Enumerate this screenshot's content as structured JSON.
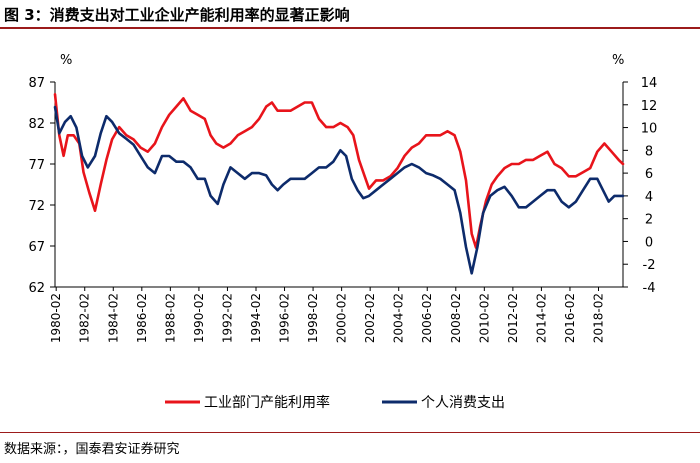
{
  "title": "图 3：消费支出对工业企业产能利用率的显著正影响",
  "source": "数据来源：，国泰君安证券研究",
  "colors": {
    "series1": "#e8141b",
    "series2": "#0d2b6b",
    "rule": "#9c1b1b"
  },
  "chart_data": {
    "type": "line",
    "left_unit": "%",
    "right_unit": "%",
    "left_ylim": [
      62,
      87
    ],
    "left_ticks": [
      "87",
      "82",
      "77",
      "72",
      "67",
      "62"
    ],
    "right_ylim": [
      -4,
      14
    ],
    "right_ticks": [
      "14",
      "12",
      "10",
      "8",
      "6",
      "4",
      "2",
      "0",
      "-2",
      "-4"
    ],
    "x_ticks": [
      "1980-02",
      "1982-02",
      "1984-02",
      "1986-02",
      "1988-02",
      "1990-02",
      "1992-02",
      "1994-02",
      "1996-02",
      "1998-02",
      "2000-02",
      "2002-02",
      "2004-02",
      "2006-02",
      "2008-02",
      "2010-02",
      "2012-02",
      "2014-02",
      "2016-02",
      "2018-02"
    ],
    "x_range": [
      1980.0,
      2019.8
    ],
    "series": [
      {
        "name": "工业部门产能利用率",
        "axis": "left",
        "points": [
          [
            1980.0,
            85.5
          ],
          [
            1980.3,
            80.5
          ],
          [
            1980.6,
            78.0
          ],
          [
            1980.9,
            80.5
          ],
          [
            1981.3,
            80.5
          ],
          [
            1981.7,
            79.5
          ],
          [
            1982.0,
            76.0
          ],
          [
            1982.4,
            73.5
          ],
          [
            1982.8,
            71.3
          ],
          [
            1983.2,
            74.5
          ],
          [
            1983.6,
            77.5
          ],
          [
            1984.0,
            80.0
          ],
          [
            1984.5,
            81.5
          ],
          [
            1985.0,
            80.5
          ],
          [
            1985.5,
            80.0
          ],
          [
            1986.0,
            79.0
          ],
          [
            1986.5,
            78.5
          ],
          [
            1987.0,
            79.5
          ],
          [
            1987.5,
            81.5
          ],
          [
            1988.0,
            83.0
          ],
          [
            1988.5,
            84.0
          ],
          [
            1989.0,
            85.0
          ],
          [
            1989.5,
            83.5
          ],
          [
            1990.0,
            83.0
          ],
          [
            1990.5,
            82.5
          ],
          [
            1990.9,
            80.5
          ],
          [
            1991.3,
            79.5
          ],
          [
            1991.8,
            79.0
          ],
          [
            1992.3,
            79.5
          ],
          [
            1992.8,
            80.5
          ],
          [
            1993.3,
            81.0
          ],
          [
            1993.8,
            81.5
          ],
          [
            1994.3,
            82.5
          ],
          [
            1994.8,
            84.0
          ],
          [
            1995.2,
            84.5
          ],
          [
            1995.6,
            83.5
          ],
          [
            1996.0,
            83.5
          ],
          [
            1996.5,
            83.5
          ],
          [
            1997.0,
            84.0
          ],
          [
            1997.5,
            84.5
          ],
          [
            1998.0,
            84.5
          ],
          [
            1998.5,
            82.5
          ],
          [
            1999.0,
            81.5
          ],
          [
            1999.5,
            81.5
          ],
          [
            2000.0,
            82.0
          ],
          [
            2000.5,
            81.5
          ],
          [
            2000.9,
            80.5
          ],
          [
            2001.3,
            77.5
          ],
          [
            2001.7,
            75.5
          ],
          [
            2002.0,
            74.0
          ],
          [
            2002.5,
            75.0
          ],
          [
            2003.0,
            75.0
          ],
          [
            2003.5,
            75.5
          ],
          [
            2004.0,
            76.5
          ],
          [
            2004.5,
            78.0
          ],
          [
            2005.0,
            79.0
          ],
          [
            2005.5,
            79.5
          ],
          [
            2006.0,
            80.5
          ],
          [
            2006.5,
            80.5
          ],
          [
            2007.0,
            80.5
          ],
          [
            2007.5,
            81.0
          ],
          [
            2008.0,
            80.5
          ],
          [
            2008.4,
            78.5
          ],
          [
            2008.8,
            75.0
          ],
          [
            2009.2,
            68.5
          ],
          [
            2009.5,
            66.8
          ],
          [
            2009.8,
            69.5
          ],
          [
            2010.2,
            72.5
          ],
          [
            2010.6,
            74.5
          ],
          [
            2011.0,
            75.5
          ],
          [
            2011.5,
            76.5
          ],
          [
            2012.0,
            77.0
          ],
          [
            2012.5,
            77.0
          ],
          [
            2013.0,
            77.5
          ],
          [
            2013.5,
            77.5
          ],
          [
            2014.0,
            78.0
          ],
          [
            2014.5,
            78.5
          ],
          [
            2015.0,
            77.0
          ],
          [
            2015.5,
            76.5
          ],
          [
            2016.0,
            75.5
          ],
          [
            2016.5,
            75.5
          ],
          [
            2017.0,
            76.0
          ],
          [
            2017.5,
            76.5
          ],
          [
            2018.0,
            78.5
          ],
          [
            2018.5,
            79.5
          ],
          [
            2019.0,
            78.5
          ],
          [
            2019.5,
            77.5
          ],
          [
            2019.8,
            77.0
          ]
        ]
      },
      {
        "name": "个人消费支出",
        "axis": "right",
        "points": [
          [
            1980.0,
            11.8
          ],
          [
            1980.3,
            9.5
          ],
          [
            1980.7,
            10.5
          ],
          [
            1981.1,
            11.0
          ],
          [
            1981.5,
            10.0
          ],
          [
            1981.9,
            7.5
          ],
          [
            1982.3,
            6.5
          ],
          [
            1982.8,
            7.5
          ],
          [
            1983.2,
            9.5
          ],
          [
            1983.6,
            11.0
          ],
          [
            1984.0,
            10.5
          ],
          [
            1984.5,
            9.5
          ],
          [
            1985.0,
            9.0
          ],
          [
            1985.5,
            8.5
          ],
          [
            1986.0,
            7.5
          ],
          [
            1986.5,
            6.5
          ],
          [
            1987.0,
            6.0
          ],
          [
            1987.5,
            7.5
          ],
          [
            1988.0,
            7.5
          ],
          [
            1988.5,
            7.0
          ],
          [
            1989.0,
            7.0
          ],
          [
            1989.5,
            6.5
          ],
          [
            1990.0,
            5.5
          ],
          [
            1990.5,
            5.5
          ],
          [
            1990.9,
            4.0
          ],
          [
            1991.4,
            3.3
          ],
          [
            1991.8,
            5.0
          ],
          [
            1992.3,
            6.5
          ],
          [
            1992.8,
            6.0
          ],
          [
            1993.3,
            5.5
          ],
          [
            1993.8,
            6.0
          ],
          [
            1994.3,
            6.0
          ],
          [
            1994.8,
            5.8
          ],
          [
            1995.2,
            5.0
          ],
          [
            1995.6,
            4.5
          ],
          [
            1996.0,
            5.0
          ],
          [
            1996.5,
            5.5
          ],
          [
            1997.0,
            5.5
          ],
          [
            1997.5,
            5.5
          ],
          [
            1998.0,
            6.0
          ],
          [
            1998.5,
            6.5
          ],
          [
            1999.0,
            6.5
          ],
          [
            1999.5,
            7.0
          ],
          [
            2000.0,
            8.0
          ],
          [
            2000.4,
            7.5
          ],
          [
            2000.8,
            5.5
          ],
          [
            2001.2,
            4.5
          ],
          [
            2001.6,
            3.8
          ],
          [
            2002.0,
            4.0
          ],
          [
            2002.5,
            4.5
          ],
          [
            2003.0,
            5.0
          ],
          [
            2003.5,
            5.5
          ],
          [
            2004.0,
            6.0
          ],
          [
            2004.5,
            6.5
          ],
          [
            2005.0,
            6.8
          ],
          [
            2005.5,
            6.5
          ],
          [
            2006.0,
            6.0
          ],
          [
            2006.5,
            5.8
          ],
          [
            2007.0,
            5.5
          ],
          [
            2007.5,
            5.0
          ],
          [
            2008.0,
            4.5
          ],
          [
            2008.4,
            2.5
          ],
          [
            2008.8,
            -0.5
          ],
          [
            2009.2,
            -2.8
          ],
          [
            2009.6,
            -0.5
          ],
          [
            2010.0,
            2.5
          ],
          [
            2010.5,
            4.0
          ],
          [
            2011.0,
            4.5
          ],
          [
            2011.5,
            4.8
          ],
          [
            2012.0,
            4.0
          ],
          [
            2012.5,
            3.0
          ],
          [
            2013.0,
            3.0
          ],
          [
            2013.5,
            3.5
          ],
          [
            2014.0,
            4.0
          ],
          [
            2014.5,
            4.5
          ],
          [
            2015.0,
            4.5
          ],
          [
            2015.5,
            3.5
          ],
          [
            2016.0,
            3.0
          ],
          [
            2016.5,
            3.5
          ],
          [
            2017.0,
            4.5
          ],
          [
            2017.5,
            5.5
          ],
          [
            2018.0,
            5.5
          ],
          [
            2018.4,
            4.5
          ],
          [
            2018.8,
            3.5
          ],
          [
            2019.2,
            4.0
          ],
          [
            2019.8,
            4.0
          ]
        ]
      }
    ]
  }
}
